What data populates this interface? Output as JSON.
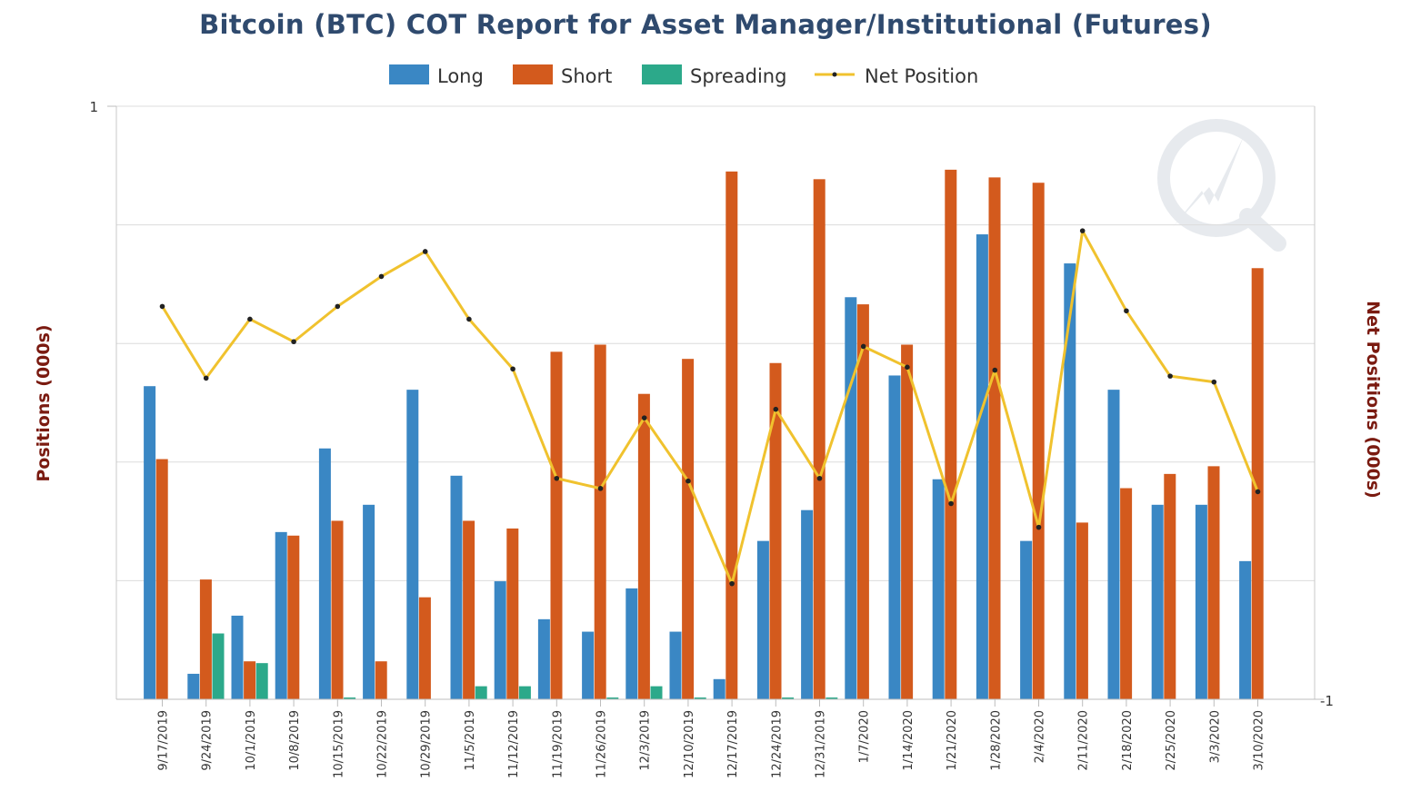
{
  "colors": {
    "long": "#3a87c4",
    "short": "#d35a1d",
    "spreading": "#2ca98a",
    "net": "#f0c22e",
    "net_marker": "#222222",
    "title": "#2f4a6e",
    "axis_label": "#7a1a10"
  },
  "chart_data": {
    "type": "bar",
    "title": "Bitcoin (BTC) COT Report for Asset Manager/Institutional (Futures)",
    "ylabel": "Positions (000s)",
    "y2label": "Net Positions (000s)",
    "y_top_tick": "1",
    "y2_bottom_tick": "-1",
    "ylim": [
      0,
      1
    ],
    "y2lim": [
      -1,
      1
    ],
    "grid": true,
    "legend_position": "top-center",
    "categories": [
      "9/17/2019",
      "9/24/2019",
      "10/1/2019",
      "10/8/2019",
      "10/15/2019",
      "10/22/2019",
      "10/29/2019",
      "11/5/2019",
      "11/12/2019",
      "11/19/2019",
      "11/26/2019",
      "12/3/2019",
      "12/10/2019",
      "12/17/2019",
      "12/24/2019",
      "12/31/2019",
      "1/7/2020",
      "1/14/2020",
      "1/21/2020",
      "1/28/2020",
      "2/4/2020",
      "2/11/2020",
      "2/18/2020",
      "2/25/2020",
      "3/3/2020",
      "3/10/2020"
    ],
    "series": [
      {
        "name": "Long",
        "kind": "bar",
        "values": [
          0.528,
          0.043,
          0.141,
          0.282,
          0.423,
          0.328,
          0.522,
          0.377,
          0.199,
          0.135,
          0.114,
          0.187,
          0.114,
          0.034,
          0.267,
          0.319,
          0.678,
          0.546,
          0.371,
          0.784,
          0.267,
          0.735,
          0.522,
          0.328,
          0.328,
          0.233
        ]
      },
      {
        "name": "Short",
        "kind": "bar",
        "values": [
          0.405,
          0.202,
          0.064,
          0.276,
          0.301,
          0.064,
          0.172,
          0.301,
          0.288,
          0.586,
          0.598,
          0.515,
          0.574,
          0.89,
          0.567,
          0.877,
          0.666,
          0.598,
          0.893,
          0.88,
          0.871,
          0.298,
          0.356,
          0.38,
          0.393,
          0.727
        ]
      },
      {
        "name": "Spreading",
        "kind": "bar",
        "values": [
          0,
          0.111,
          0.061,
          0,
          0.003,
          0,
          0,
          0.022,
          0.022,
          0,
          0.003,
          0.022,
          0.003,
          0,
          0.003,
          0.003,
          0,
          0,
          0,
          0,
          0,
          0,
          0,
          0,
          0,
          0
        ]
      },
      {
        "name": "Net Position",
        "kind": "line",
        "values": [
          0.325,
          0.083,
          0.282,
          0.206,
          0.325,
          0.426,
          0.51,
          0.282,
          0.114,
          -0.255,
          -0.289,
          -0.051,
          -0.264,
          -0.61,
          -0.022,
          -0.255,
          0.19,
          0.12,
          -0.34,
          0.11,
          -0.42,
          0.58,
          0.31,
          0.09,
          0.07,
          -0.3
        ]
      }
    ]
  }
}
